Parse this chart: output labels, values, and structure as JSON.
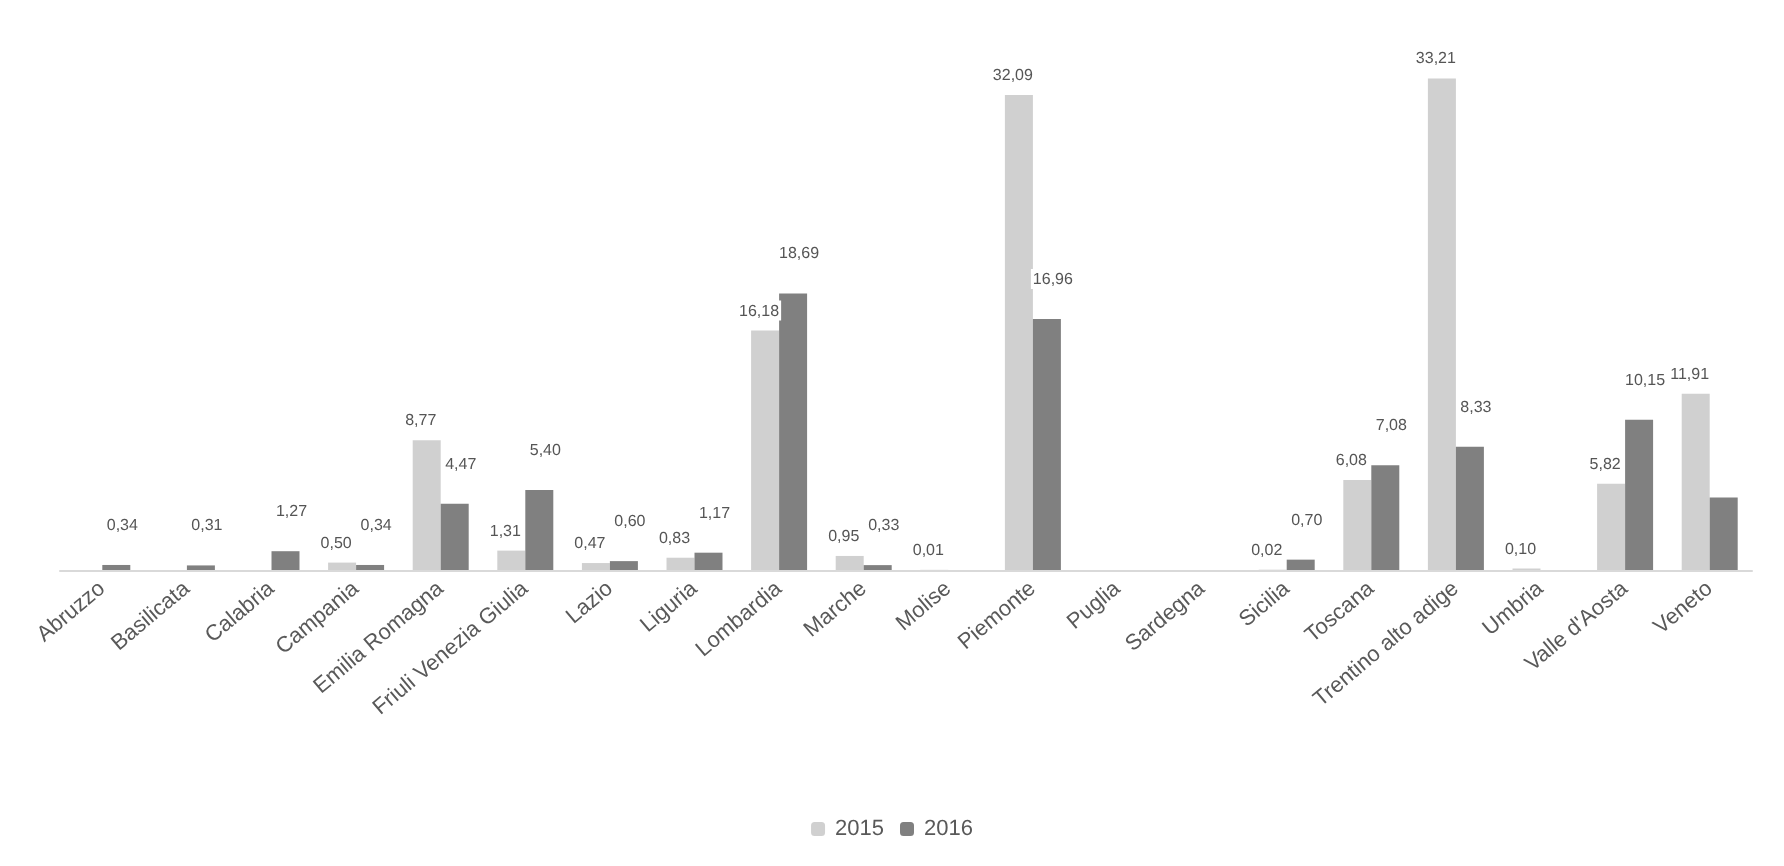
{
  "chart_data": {
    "type": "bar",
    "categories": [
      "Abruzzo",
      "Basilicata",
      "Calabria",
      "Campania",
      "Emilia Romagna",
      "Friuli Venezia Giulia",
      "Lazio",
      "Liguria",
      "Lombardia",
      "Marche",
      "Molise",
      "Piemonte",
      "Puglia",
      "Sardegna",
      "Sicilia",
      "Toscana",
      "Trentino alto adige",
      "Umbria",
      "Valle d'Aosta",
      "Veneto"
    ],
    "series": [
      {
        "name": "2015",
        "color": "#d0d0d0",
        "values": [
          null,
          null,
          null,
          0.5,
          8.77,
          1.31,
          0.47,
          0.83,
          16.18,
          0.95,
          0.01,
          32.09,
          null,
          null,
          0.02,
          6.08,
          33.21,
          0.1,
          5.82,
          11.91
        ],
        "value_labels": [
          null,
          null,
          null,
          "0,50",
          "8,77",
          "1,31",
          "0,47",
          "0,83",
          "16,18",
          "0,95",
          "0,01",
          "32,09",
          null,
          null,
          "0,02",
          "6,08",
          "33,21",
          "0,10",
          "5,82",
          "11,91"
        ]
      },
      {
        "name": "2016",
        "color": "#808080",
        "values": [
          0.34,
          0.31,
          1.27,
          0.34,
          4.47,
          5.4,
          0.6,
          1.17,
          18.69,
          0.33,
          null,
          16.96,
          null,
          null,
          0.7,
          7.08,
          8.33,
          null,
          10.15,
          4.9
        ],
        "value_labels": [
          "0,34",
          "0,31",
          "1,27",
          "0,34",
          "4,47",
          "5,40",
          "0,60",
          "1,17",
          "18,69",
          "0,33",
          null,
          "16,96",
          null,
          null,
          "0,70",
          "7,08",
          "8,33",
          null,
          "10,15",
          null
        ]
      }
    ],
    "legend": "bottom"
  }
}
